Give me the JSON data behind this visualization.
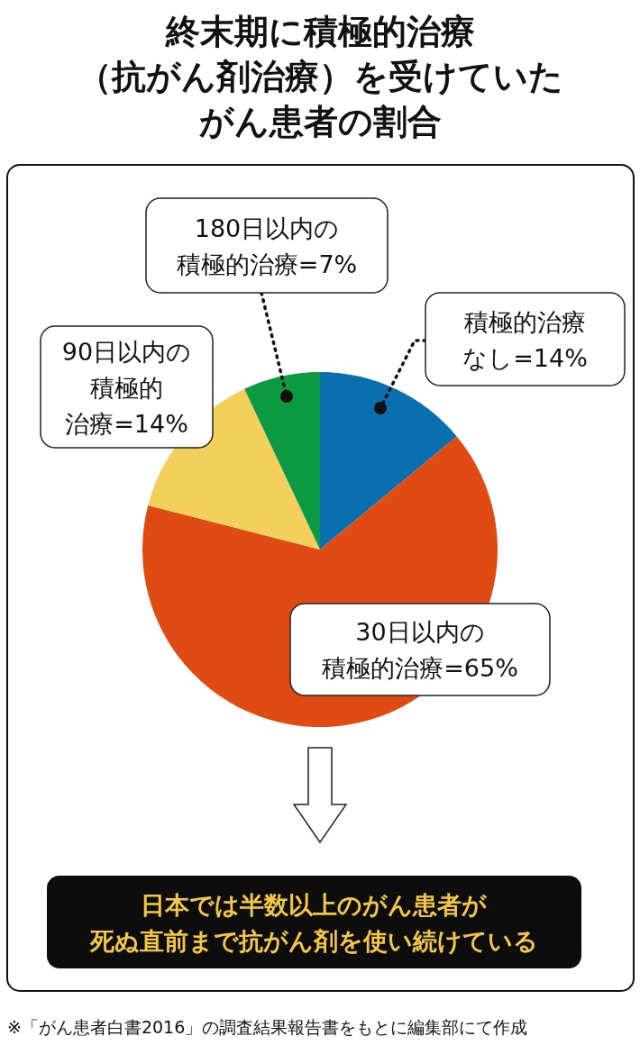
{
  "chart_data": {
    "type": "pie",
    "title": "終末期に積極的治療（抗がん剤治療）を受けていたがん患者の割合",
    "categories": [
      "積極的治療なし=14%",
      "30日以内の積極的治療=65%",
      "90日以内の積極的治療=14%",
      "180日以内の積極的治療=7%"
    ],
    "values": [
      14,
      65,
      14,
      7
    ],
    "colors": [
      "#0a6fae",
      "#e04b14",
      "#f3cf5c",
      "#0b9a42"
    ],
    "annotations": [
      "日本では半数以上のがん患者が死ぬ直前まで抗がん剤を使い続けている",
      "※「がん患者白書2016」の調査結果報告書をもとに編集部にて作成"
    ]
  }
}
